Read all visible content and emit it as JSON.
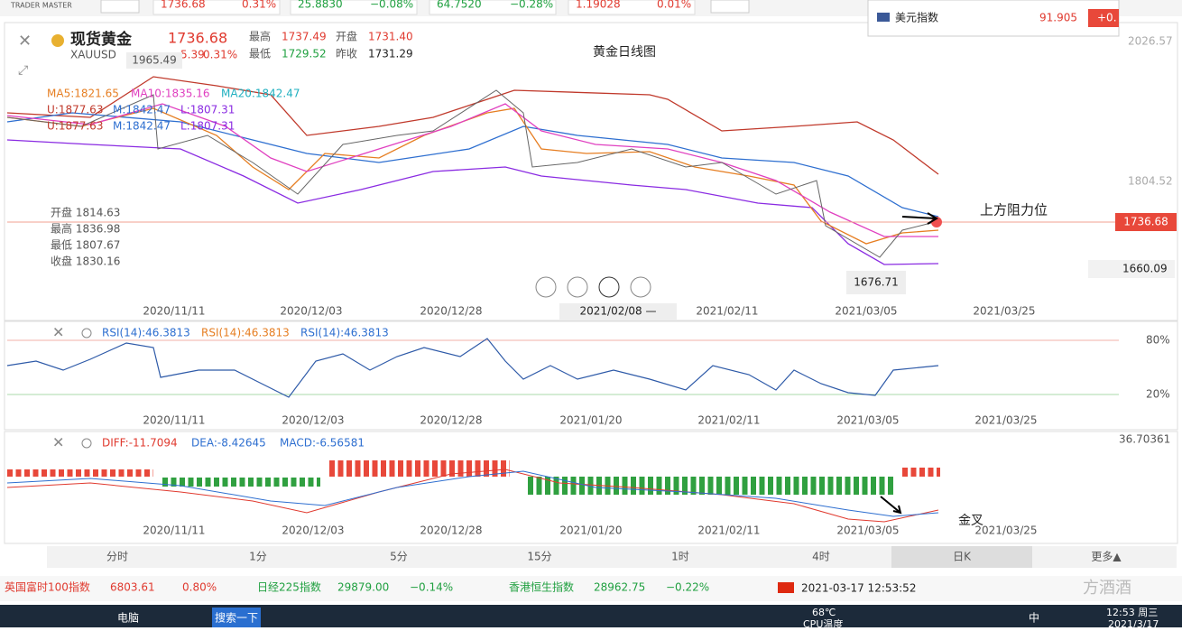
{
  "top_bar": {
    "logo": "TRADER MASTER",
    "tickers": [
      [
        "1736.68",
        "0.31%"
      ],
      [
        "25.8830",
        "−0.08%"
      ],
      [
        "64.7520",
        "−0.28%"
      ],
      [
        "1.19028",
        "0.01%"
      ]
    ]
  },
  "popup": {
    "name": "美元指数",
    "price": "91.905",
    "change": "+0."
  },
  "main": {
    "name": "现货黄金",
    "symbol": "XAUUSD",
    "price": "1736.68",
    "change": "5.39",
    "change_pct": "0.31%",
    "high_label": "最高",
    "high": "1737.49",
    "open_label": "开盘",
    "open": "1731.40",
    "low_label": "最低",
    "low": "1729.52",
    "prev_label": "昨收",
    "prev": "1731.29",
    "title": "黄金日线图",
    "peak": "1965.49",
    "trough": "1676.71",
    "ma": [
      "MA5:1821.65",
      "MA10:1835.16",
      "MA20:1842.47"
    ],
    "boll": [
      "U:1877.63",
      "M:1842.47",
      "L:1807.31"
    ],
    "ohlc": [
      "开盘 1814.63",
      "最高 1836.98",
      "最低 1807.67",
      "收盘 1830.16"
    ],
    "axis": [
      "2026.57",
      "1804.52",
      "1736.68",
      "1660.09"
    ],
    "annotation": "上方阻力位",
    "dates": [
      "2020/11/11",
      "2020/12/03",
      "2020/12/28",
      "2021/02/08 —",
      "2021/02/11",
      "2021/03/05",
      "2021/03/25"
    ]
  },
  "rsi": {
    "labels": [
      "RSI(14):46.3813",
      "RSI(14):46.3813",
      "RSI(14):46.3813"
    ],
    "levels": [
      "80%",
      "20%"
    ],
    "dates": [
      "2020/11/11",
      "2020/12/03",
      "2020/12/28",
      "2021/01/20",
      "2021/02/11",
      "2021/03/05",
      "2021/03/25"
    ]
  },
  "macd": {
    "diff": "DIFF:-11.7094",
    "dea": "DEA:-8.42645",
    "macd": "MACD:-6.56581",
    "axis": "36.70361",
    "annotation": "金叉",
    "dates": [
      "2020/11/11",
      "2020/12/03",
      "2020/12/28",
      "2021/01/20",
      "2021/02/11",
      "2021/03/05",
      "2021/03/25"
    ]
  },
  "tabs": [
    "分时",
    "1分",
    "5分",
    "15分",
    "1时",
    "4时",
    "日K",
    "更多▲"
  ],
  "bottom_ticker": [
    [
      "英国富时100指数",
      "6803.61",
      "0.80%"
    ],
    [
      "日经225指数",
      "29879.00",
      "−0.14%"
    ],
    [
      "香港恒生指数",
      "28962.75",
      "−0.22%"
    ]
  ],
  "datetime": "2021-03-17 12:53:52",
  "taskbar": {
    "pc": "电脑",
    "search": "搜索一下",
    "temp": "68℃",
    "cpu": "CPU温度",
    "ime": "中",
    "time": "12:53 周三",
    "date": "2021/3/17",
    "watermark": "方酒酒"
  }
}
